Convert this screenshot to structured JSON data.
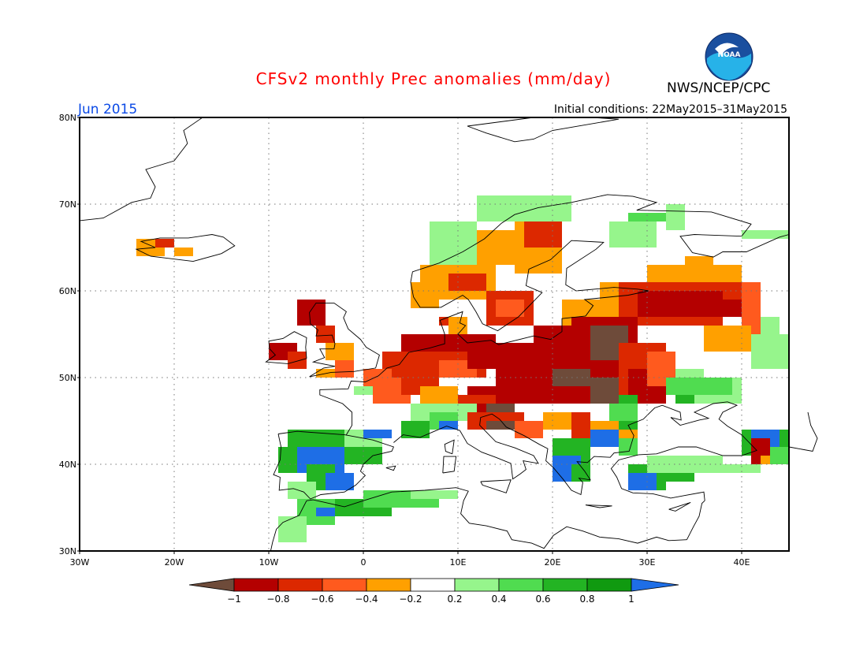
{
  "header": {
    "title": "CFSv2 monthly Prec anomalies (mm/day)",
    "organization": "NWS/NCEP/CPC",
    "forecast_month": "Jun 2015",
    "initial_conditions": "Initial conditions: 22May2015–31May2015",
    "logo_text": "NOAA"
  },
  "colors": {
    "title": "#ff0000",
    "month": "#0a49e6",
    "dry_extreme": "#6e4b3a",
    "dry_1": "#b40000",
    "dry_2": "#dc2800",
    "dry_3": "#ff5a1e",
    "dry_4": "#ffa000",
    "neutral": "#ffffff",
    "wet_1": "#96f58c",
    "wet_2": "#50dc50",
    "wet_3": "#23b423",
    "wet_4": "#109a10",
    "wet_extreme": "#1e6ee6",
    "land": "#ffffff",
    "coast": "#000000"
  },
  "map": {
    "lat_range": [
      30,
      80
    ],
    "lon_range": [
      -30,
      45
    ],
    "lat_labels": [
      "30N",
      "40N",
      "50N",
      "60N",
      "70N",
      "80N"
    ],
    "lon_labels": [
      "30W",
      "20W",
      "10W",
      "0",
      "10E",
      "20E",
      "30E",
      "40E"
    ]
  },
  "colorbar": {
    "labels": [
      "−1",
      "−0.8",
      "−0.6",
      "−0.4",
      "−0.2",
      "0.2",
      "0.4",
      "0.6",
      "0.8",
      "1"
    ]
  }
}
